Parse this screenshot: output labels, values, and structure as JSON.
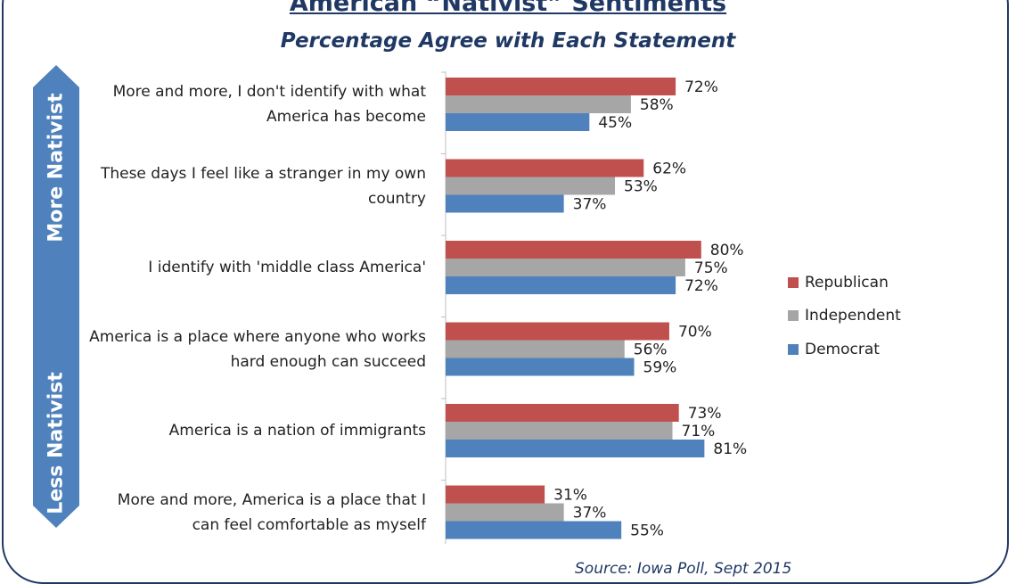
{
  "chart_data": {
    "type": "bar",
    "orientation": "horizontal",
    "title": "American “Nativist” Sentiments",
    "subtitle": "Percentage Agree with Each Statement",
    "categories": [
      "More and more, I don't identify with what America has become",
      "These days I feel like a stranger in my own country",
      "I identify with 'middle class America'",
      "America is a place where anyone who works hard enough can succeed",
      "America is a nation of immigrants",
      "More and more, America is a place that I can feel comfortable as myself"
    ],
    "series": [
      {
        "name": "Republican",
        "color": "#c0504d",
        "values": [
          72,
          62,
          80,
          70,
          73,
          31
        ]
      },
      {
        "name": "Independent",
        "color": "#a6a6a6",
        "values": [
          58,
          53,
          75,
          56,
          71,
          37
        ]
      },
      {
        "name": "Democrat",
        "color": "#4f81bd",
        "values": [
          45,
          37,
          72,
          59,
          81,
          55
        ]
      }
    ],
    "value_suffix": "%",
    "xlim": [
      0,
      100
    ],
    "grid": false,
    "legend_position": "right",
    "side_axis": {
      "top_label": "More Nativist",
      "bottom_label": "Less Nativist",
      "color": "#4f81bd"
    },
    "source": "Source: Iowa Poll, Sept 2015"
  }
}
